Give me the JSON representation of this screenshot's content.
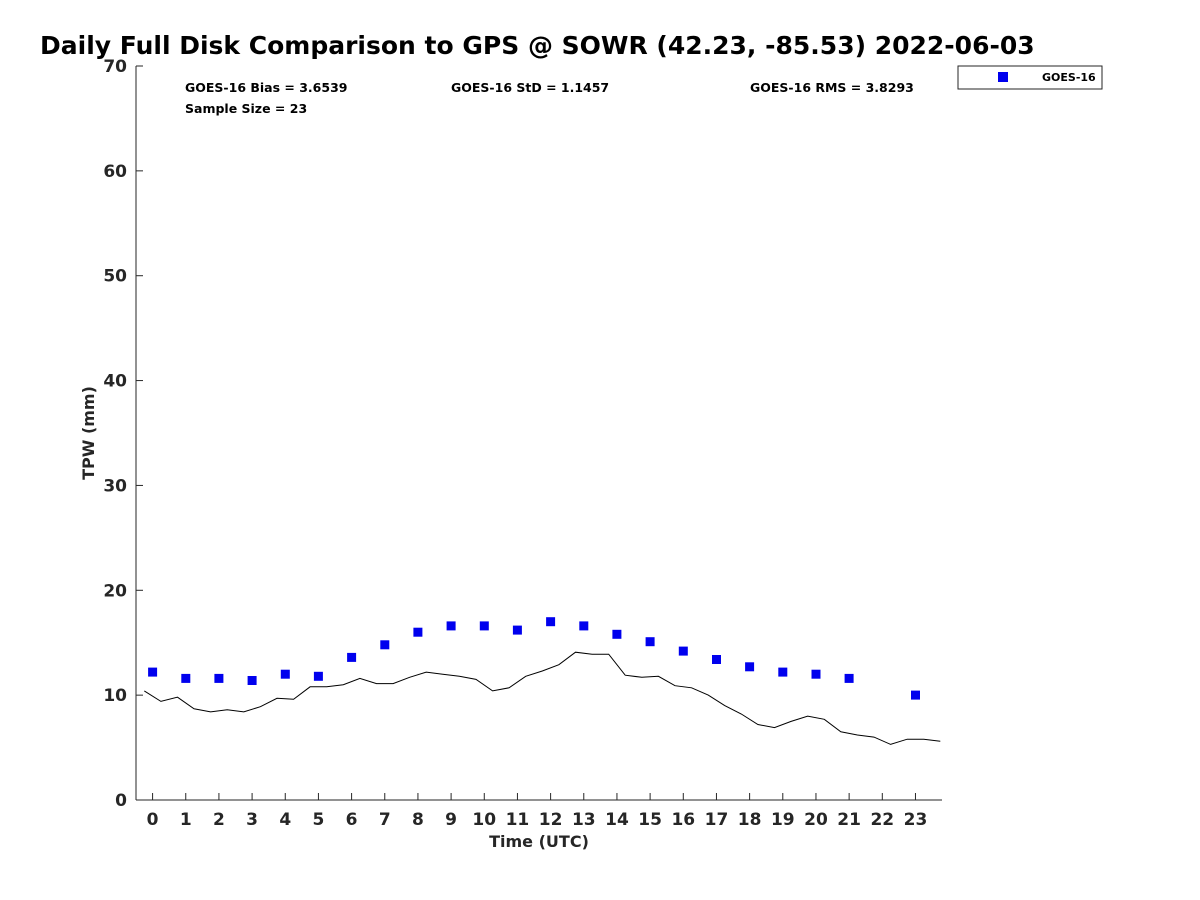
{
  "chart_data": {
    "type": "scatter",
    "title": "Daily Full Disk Comparison to GPS @ SOWR (42.23, -85.53) 2022-06-03",
    "xlabel": "Time (UTC)",
    "ylabel": "TPW (mm)",
    "xlim": [
      -0.5,
      23.8
    ],
    "ylim": [
      0,
      70
    ],
    "x_ticks": [
      "0",
      "1",
      "2",
      "3",
      "4",
      "5",
      "6",
      "7",
      "8",
      "9",
      "10",
      "11",
      "12",
      "13",
      "14",
      "15",
      "16",
      "17",
      "18",
      "19",
      "20",
      "21",
      "22",
      "23"
    ],
    "y_ticks": [
      "0",
      "10",
      "20",
      "30",
      "40",
      "50",
      "60",
      "70"
    ],
    "grid": false,
    "legend_position": "top-right",
    "stats": {
      "bias": "GOES-16 Bias = 3.6539",
      "std": "GOES-16 StD = 1.1457",
      "rms": "GOES-16 RMS = 3.8293",
      "sample": "Sample Size = 23"
    },
    "series": [
      {
        "name": "GOES-16",
        "kind": "markers",
        "color": "#0000ee",
        "x": [
          0,
          1,
          2,
          3,
          4,
          5,
          6,
          7,
          8,
          9,
          10,
          11,
          12,
          13,
          14,
          15,
          16,
          17,
          18,
          19,
          20,
          21,
          23
        ],
        "y": [
          12.2,
          11.6,
          11.6,
          11.4,
          12.0,
          11.8,
          13.6,
          14.8,
          16.0,
          16.6,
          16.6,
          16.2,
          17.0,
          16.6,
          15.8,
          15.1,
          14.2,
          13.4,
          12.7,
          12.2,
          12.0,
          11.6,
          10.0
        ]
      },
      {
        "kind": "line",
        "color": "#000000",
        "x": [
          -0.25,
          0.25,
          0.75,
          1.25,
          1.75,
          2.25,
          2.75,
          3.25,
          3.75,
          4.25,
          4.75,
          5.25,
          5.75,
          6.25,
          6.75,
          7.25,
          7.75,
          8.25,
          8.75,
          9.25,
          9.75,
          10.25,
          10.75,
          11.25,
          11.75,
          12.25,
          12.75,
          13.25,
          13.75,
          14.25,
          14.75,
          15.25,
          15.75,
          16.25,
          16.75,
          17.25,
          17.75,
          18.25,
          18.75,
          19.25,
          19.75,
          20.25,
          20.75,
          21.25,
          21.75,
          22.25,
          22.75,
          23.25,
          23.75
        ],
        "y": [
          10.4,
          9.4,
          9.8,
          8.7,
          8.4,
          8.6,
          8.4,
          8.9,
          9.7,
          9.6,
          10.8,
          10.8,
          11.0,
          11.6,
          11.1,
          11.1,
          11.7,
          12.2,
          12.0,
          11.8,
          11.5,
          10.4,
          10.7,
          11.8,
          12.3,
          12.9,
          14.1,
          13.9,
          13.9,
          11.9,
          11.7,
          11.8,
          10.9,
          10.7,
          10.0,
          9.0,
          8.2,
          7.2,
          6.9,
          7.5,
          8.0,
          7.7,
          6.5,
          6.2,
          6.0,
          5.3,
          5.8,
          5.8,
          5.6
        ]
      }
    ]
  }
}
